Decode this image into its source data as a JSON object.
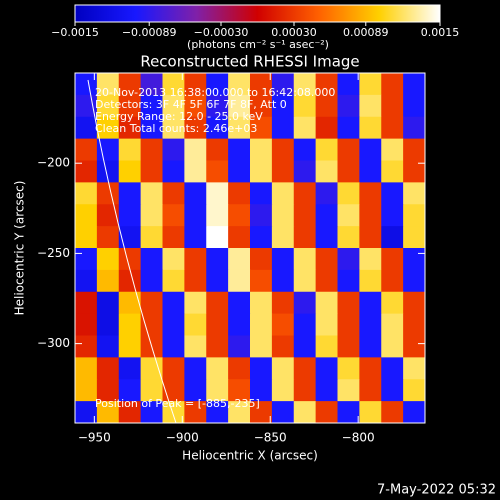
{
  "chart_data": {
    "type": "heatmap",
    "title": "Reconstructed RHESSI Image",
    "xlabel": "Heliocentric X (arcsec)",
    "ylabel": "Heliocentric Y (arcsec)",
    "annotations": [
      "20-Nov-2013 16:38:00.000 to 16:42:08.000",
      "Detectors: 3F 4F 5F 6F 7F 8F, Att 0",
      "Energy Range: 12.0 - 25.0 keV",
      "Clean    Total counts: 2.46e+03"
    ],
    "peak_label": "Position of Peak = [-885,-235]",
    "timestamp": "7-May-2022 05:32",
    "colorbar_label": "(photons cm⁻² s⁻¹ asec⁻²)",
    "colormap": [
      "#0000c0",
      "#1818ff",
      "#8020a8",
      "#d00000",
      "#ff6000",
      "#ffd000",
      "#ffffff"
    ],
    "zlim": [
      -0.0015,
      0.0015
    ],
    "zticks": [
      {
        "value": -0.0015,
        "label": "−0.0015"
      },
      {
        "value": -0.00089,
        "label": "−0.00089"
      },
      {
        "value": -0.0003,
        "label": "−0.00030"
      },
      {
        "value": 0.0003,
        "label": "0.00030"
      },
      {
        "value": 0.00089,
        "label": "0.00089"
      },
      {
        "value": 0.0015,
        "label": "0.0015"
      }
    ],
    "xlim": [
      -961,
      -762
    ],
    "ylim": [
      -344,
      -150
    ],
    "xticks": [
      {
        "value": -950,
        "label": "−950"
      },
      {
        "value": -900,
        "label": "−900"
      },
      {
        "value": -850,
        "label": "−850"
      },
      {
        "value": -800,
        "label": "−800"
      }
    ],
    "yticks": [
      {
        "value": -200,
        "label": "−200"
      },
      {
        "value": -250,
        "label": "−250"
      },
      {
        "value": -300,
        "label": "−300"
      }
    ],
    "z": [
      [
        -0.001,
        0.0012,
        0.0003,
        -0.0008,
        0.0011,
        0.0003,
        -0.001,
        0.0012,
        0.0003,
        -0.0009,
        0.0012,
        0.0003,
        -0.001,
        0.0011,
        0.0003,
        -0.001
      ],
      [
        -0.0009,
        0.0011,
        0.0003,
        -0.001,
        0.0012,
        0.0004,
        -0.0009,
        0.0013,
        0.0003,
        -0.001,
        0.0011,
        0.0003,
        -0.0009,
        0.0012,
        0.0003,
        -0.001
      ],
      [
        -0.0011,
        0.001,
        0.0002,
        -0.001,
        0.0012,
        0.0003,
        -0.001,
        0.0012,
        0.0004,
        -0.001,
        0.0012,
        0.0002,
        -0.001,
        0.0011,
        0.0003,
        -0.0009
      ],
      [
        0.0003,
        -0.001,
        0.0011,
        0.0003,
        -0.0009,
        0.0013,
        0.0003,
        -0.001,
        0.0012,
        0.0003,
        -0.001,
        0.0011,
        0.0003,
        -0.001,
        0.0012,
        0.0003
      ],
      [
        0.0002,
        -0.0011,
        0.001,
        0.0003,
        -0.001,
        0.0013,
        0.0004,
        -0.001,
        0.0012,
        0.0003,
        -0.0009,
        0.0012,
        0.0003,
        -0.001,
        0.0011,
        0.0003
      ],
      [
        0.0011,
        0.0003,
        -0.001,
        0.0012,
        0.0003,
        -0.001,
        0.0014,
        0.0003,
        -0.001,
        0.0012,
        0.0003,
        -0.0009,
        0.0011,
        0.0003,
        -0.001,
        0.0012
      ],
      [
        0.001,
        0.0002,
        -0.001,
        0.0012,
        0.0004,
        -0.001,
        0.0014,
        0.0004,
        -0.0009,
        0.0012,
        0.0003,
        -0.001,
        0.0012,
        0.0003,
        -0.001,
        0.0011
      ],
      [
        0.001,
        0.0003,
        -0.0011,
        0.0011,
        0.0003,
        -0.001,
        0.0015,
        0.0003,
        -0.001,
        0.0012,
        0.0003,
        -0.001,
        0.0011,
        0.0003,
        -0.0012,
        0.0011
      ],
      [
        -0.001,
        0.001,
        0.0003,
        -0.001,
        0.0012,
        0.0003,
        -0.001,
        0.0013,
        0.0003,
        -0.001,
        0.0012,
        0.0003,
        -0.0009,
        0.0012,
        0.0003,
        -0.001
      ],
      [
        -0.0011,
        0.0009,
        0.0002,
        -0.001,
        0.0011,
        0.0003,
        -0.001,
        0.0013,
        0.0004,
        -0.001,
        0.0012,
        0.0003,
        -0.001,
        0.0011,
        0.0003,
        -0.001
      ],
      [
        0.0001,
        -0.0012,
        0.0009,
        0.0003,
        -0.001,
        0.0012,
        0.0003,
        -0.001,
        0.0012,
        0.0003,
        -0.0009,
        0.0012,
        0.0003,
        -0.001,
        0.0011,
        0.0003
      ],
      [
        0.0001,
        -0.0012,
        0.001,
        0.0003,
        -0.001,
        0.0011,
        0.0003,
        -0.001,
        0.0012,
        0.0004,
        -0.001,
        0.0012,
        0.0003,
        -0.001,
        0.0012,
        0.0003
      ],
      [
        0.0002,
        -0.0011,
        0.001,
        0.0003,
        -0.001,
        0.0012,
        0.0003,
        -0.0009,
        0.0012,
        0.0003,
        -0.001,
        0.0011,
        0.0003,
        -0.001,
        0.0012,
        0.0003
      ],
      [
        0.0009,
        0.0002,
        -0.0011,
        0.0011,
        0.0003,
        -0.001,
        0.0012,
        0.0003,
        -0.001,
        0.0012,
        0.0003,
        -0.001,
        0.0011,
        0.0003,
        -0.001,
        0.0012
      ],
      [
        0.0009,
        0.0002,
        -0.001,
        0.0011,
        0.0003,
        -0.001,
        0.0012,
        0.0004,
        -0.001,
        0.0012,
        0.0003,
        -0.001,
        0.0012,
        0.0003,
        -0.001,
        0.0011
      ],
      [
        -0.0011,
        0.0009,
        0.0002,
        -0.001,
        0.0011,
        0.0003,
        -0.001,
        0.0012,
        0.0003,
        -0.001,
        0.0012,
        0.0003,
        -0.001,
        0.0011,
        0.0003,
        -0.001
      ]
    ]
  }
}
